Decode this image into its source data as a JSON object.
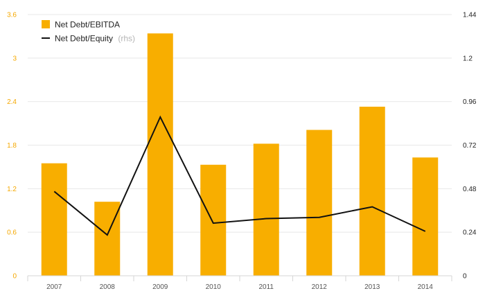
{
  "chart_data": {
    "type": "bar+line",
    "categories": [
      "2007",
      "2008",
      "2009",
      "2010",
      "2011",
      "2012",
      "2013",
      "2014"
    ],
    "series": [
      {
        "name": "Net Debt/EBITDA",
        "type": "bar",
        "axis": "left",
        "color": "#f8ae00",
        "values": [
          1.55,
          1.02,
          3.34,
          1.53,
          1.82,
          2.01,
          2.33,
          1.63
        ]
      },
      {
        "name": "Net Debt/Equity",
        "name_suffix": "(rhs)",
        "type": "line",
        "axis": "right",
        "color": "#111111",
        "values": [
          0.465,
          0.225,
          0.875,
          0.29,
          0.315,
          0.322,
          0.38,
          0.245
        ]
      }
    ],
    "y_left": {
      "ticks": [
        "0",
        "0.6",
        "1.2",
        "1.8",
        "2.4",
        "3",
        "3.6"
      ],
      "ylim": [
        0,
        3.6
      ],
      "color": "#f5a800"
    },
    "y_right": {
      "ticks": [
        "0",
        "0.24",
        "0.48",
        "0.72",
        "0.96",
        "1.2",
        "1.44"
      ],
      "ylim": [
        0,
        1.44
      ],
      "color": "#222222"
    },
    "grid": true,
    "legend_position": "top-left"
  }
}
